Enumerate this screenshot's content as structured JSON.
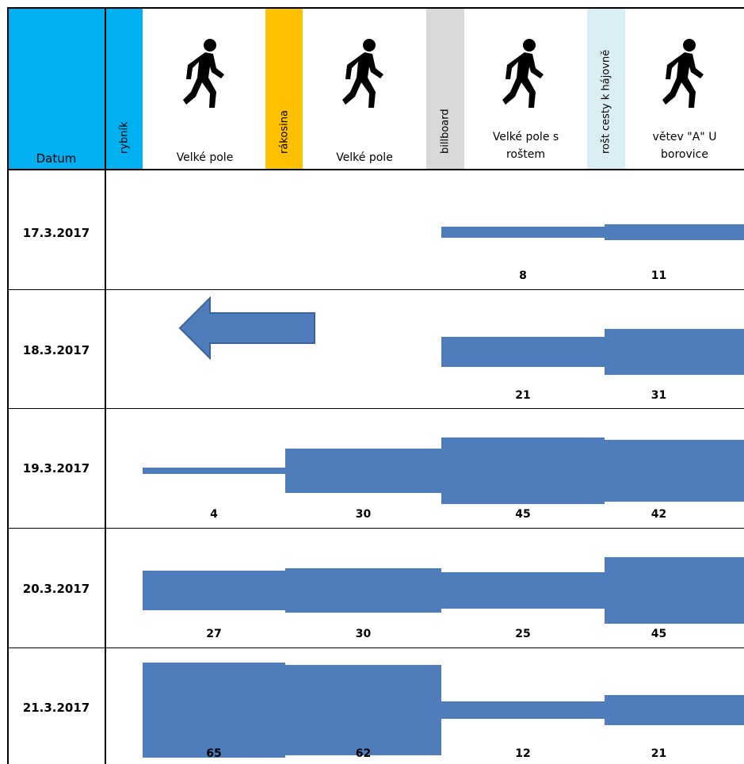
{
  "header": {
    "datum_label": "Datum",
    "locations": [
      {
        "label": "Velké pole"
      },
      {
        "label": "Velké pole"
      },
      {
        "label": "Velké pole s\nroštem"
      },
      {
        "label": "větev \"A\" U\nborovice"
      }
    ],
    "markers": [
      {
        "label": "rybník",
        "color": "#00b0f0"
      },
      {
        "label": "rákosina",
        "color": "#ffc000"
      },
      {
        "label": "billboard",
        "color": "#d9d9d9"
      },
      {
        "label": "rošt cesty k hájovně",
        "color": "#dbeef4"
      }
    ],
    "datum_color": "#00b0f0",
    "walker_icon": "walking-person-icon"
  },
  "chart_data": {
    "type": "table",
    "bar_color": "#4f7dbb",
    "columns": [
      "Velké pole",
      "Velké pole",
      "Velké pole s roštem",
      "větev \"A\" U borovice"
    ],
    "rows": [
      {
        "date": "17.3.2017",
        "values": [
          null,
          null,
          8,
          11
        ],
        "direction": null
      },
      {
        "date": "18.3.2017",
        "values": [
          null,
          null,
          21,
          31
        ],
        "direction": "left"
      },
      {
        "date": "19.3.2017",
        "values": [
          4,
          30,
          45,
          42
        ],
        "direction": null
      },
      {
        "date": "20.3.2017",
        "values": [
          27,
          30,
          25,
          45
        ],
        "direction": null
      },
      {
        "date": "21.3.2017",
        "values": [
          65,
          62,
          12,
          21
        ],
        "direction": null
      }
    ]
  }
}
